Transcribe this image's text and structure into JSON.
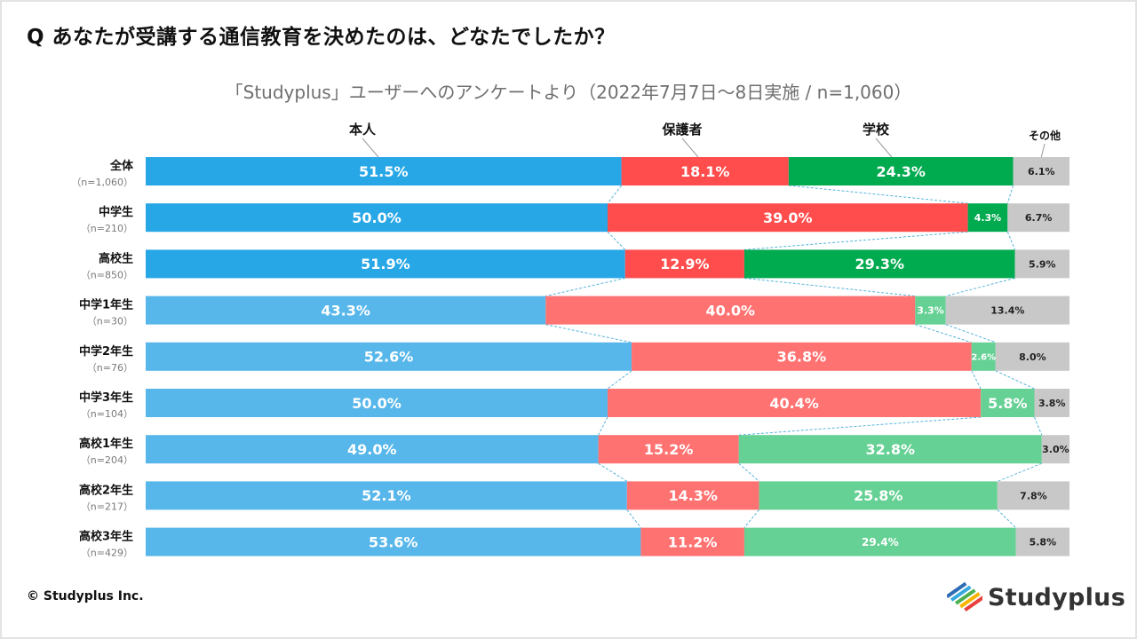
{
  "question": "Q あなたが受講する通信教育を決めたのは、どなたでしたか？",
  "subtitle": "「Studyplus」ユーザーへのアンケートより（2022年7月7日～8日実施 / n=1,060）",
  "copyright": "© Studyplus Inc.",
  "logo_text": "Studyplus",
  "colors": {
    "bright": [
      "#27a7e6",
      "#ff4d4d",
      "#00aa4f",
      "#c8c8c8"
    ],
    "light": [
      "#58b7ea",
      "#ff7272",
      "#66d194",
      "#c8c8c8"
    ],
    "connector": "#56b3dd"
  },
  "chart_data": {
    "type": "bar",
    "orientation": "horizontal",
    "stacked": true,
    "normalized": true,
    "xlim": [
      0,
      100
    ],
    "series": [
      {
        "name": "本人",
        "values": [
          51.5,
          50.0,
          51.9,
          43.3,
          52.6,
          50.0,
          49.0,
          52.1,
          53.6
        ]
      },
      {
        "name": "保護者",
        "values": [
          18.1,
          39.0,
          12.9,
          40.0,
          36.8,
          40.4,
          15.2,
          14.3,
          11.2
        ]
      },
      {
        "name": "学校",
        "values": [
          24.3,
          4.3,
          29.3,
          3.3,
          2.6,
          5.8,
          32.8,
          25.8,
          29.4
        ]
      },
      {
        "name": "その他",
        "values": [
          6.1,
          6.7,
          5.9,
          13.4,
          8.0,
          3.8,
          3.0,
          7.8,
          5.8
        ]
      }
    ],
    "categories": [
      {
        "label": "全体",
        "n": "（n=1,060）",
        "style": "bright"
      },
      {
        "label": "中学生",
        "n": "（n=210）",
        "style": "bright"
      },
      {
        "label": "高校生",
        "n": "（n=850）",
        "style": "bright"
      },
      {
        "label": "中学1年生",
        "n": "（n=30）",
        "style": "light"
      },
      {
        "label": "中学2年生",
        "n": "（n=76）",
        "style": "light"
      },
      {
        "label": "中学3年生",
        "n": "（n=104）",
        "style": "light"
      },
      {
        "label": "高校1年生",
        "n": "（n=204）",
        "style": "light"
      },
      {
        "label": "高校2年生",
        "n": "（n=217）",
        "style": "light"
      },
      {
        "label": "高校3年生",
        "n": "（n=429）",
        "style": "light"
      }
    ],
    "value_labels": [
      [
        "51.5%",
        "18.1%",
        "24.3%",
        "6.1%"
      ],
      [
        "50.0%",
        "39.0%",
        "4.3%",
        "6.7%"
      ],
      [
        "51.9%",
        "12.9%",
        "29.3%",
        "5.9%"
      ],
      [
        "43.3%",
        "40.0%",
        "3.3%",
        "13.4%"
      ],
      [
        "52.6%",
        "36.8%",
        "2.6%",
        "8.0%"
      ],
      [
        "50.0%",
        "40.4%",
        "5.8%",
        "3.8%"
      ],
      [
        "49.0%",
        "15.2%",
        "32.8%",
        "3.0%"
      ],
      [
        "52.1%",
        "14.3%",
        "25.8%",
        "7.8%"
      ],
      [
        "53.6%",
        "11.2%",
        "29.4%",
        "5.8%"
      ]
    ]
  }
}
